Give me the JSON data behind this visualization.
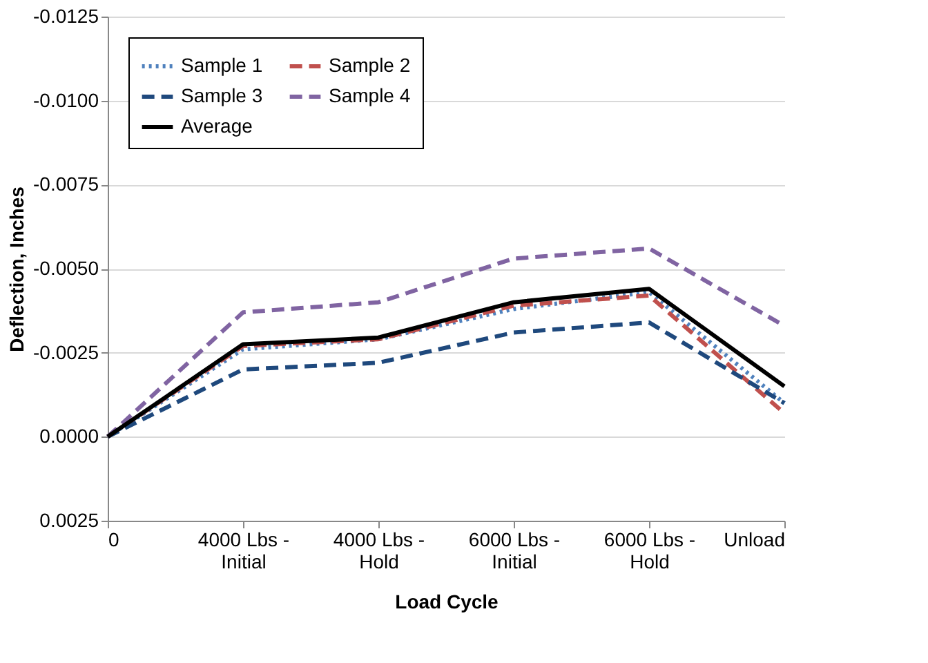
{
  "chart_data": {
    "type": "line",
    "xlabel": "Load Cycle",
    "ylabel": "Deflection, Inches",
    "categories": [
      "0",
      "4000 Lbs - Initial",
      "4000 Lbs - Hold",
      "6000 Lbs - Initial",
      "6000 Lbs - Hold",
      "Unload"
    ],
    "series": [
      {
        "name": "Sample 1",
        "color": "#4f81bd",
        "line_style": "dotted",
        "values": [
          0,
          -0.0026,
          -0.0029,
          -0.0038,
          -0.0043,
          -0.001
        ]
      },
      {
        "name": "Sample 2",
        "color": "#c0504d",
        "line_style": "dashed",
        "values": [
          0,
          -0.0027,
          -0.0029,
          -0.0039,
          -0.0042,
          -0.0007
        ]
      },
      {
        "name": "Sample 3",
        "color": "#1f497d",
        "line_style": "dashed",
        "values": [
          0,
          -0.002,
          -0.0022,
          -0.0031,
          -0.0034,
          -0.001
        ]
      },
      {
        "name": "Sample 4",
        "color": "#8064a2",
        "line_style": "dashed",
        "values": [
          0,
          -0.0037,
          -0.004,
          -0.0053,
          -0.0056,
          -0.0033
        ]
      },
      {
        "name": "Average",
        "color": "#000000",
        "line_style": "solid",
        "values": [
          0,
          -0.00275,
          -0.00295,
          -0.004,
          -0.0044,
          -0.0015
        ]
      }
    ],
    "ylim": [
      0.0025,
      -0.0125
    ],
    "yticks": [
      {
        "value": -0.0125,
        "label": "-0.0125"
      },
      {
        "value": -0.01,
        "label": "-0.0100"
      },
      {
        "value": -0.0075,
        "label": "-0.0075"
      },
      {
        "value": -0.005,
        "label": "-0.0050"
      },
      {
        "value": -0.0025,
        "label": "-0.0025"
      },
      {
        "value": 0,
        "label": "0.0000"
      },
      {
        "value": 0.0025,
        "label": "0.0025"
      }
    ],
    "grid": "y",
    "legend": "top left",
    "marker": "none"
  }
}
